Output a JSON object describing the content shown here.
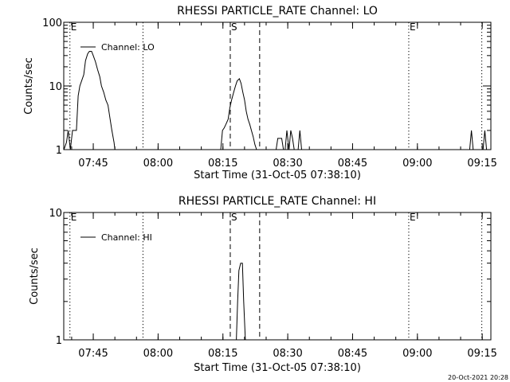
{
  "footer_timestamp": "20-Oct-2021 20:28",
  "chart_data": [
    {
      "type": "line",
      "title": "RHESSI PARTICLE_RATE Channel: LO",
      "xlabel": "Start Time (31-Oct-05 07:38:10)",
      "ylabel": "Counts/sec",
      "yscale": "log",
      "ylim": [
        1,
        100
      ],
      "xlim_minutes": [
        458.17,
        557.0
      ],
      "y_ticks": [
        {
          "value": 1,
          "label": "1"
        },
        {
          "value": 10,
          "label": "10"
        },
        {
          "value": 100,
          "label": "100"
        }
      ],
      "x_ticks": [
        {
          "value": 465,
          "label": "07:45"
        },
        {
          "value": 480,
          "label": "08:00"
        },
        {
          "value": 495,
          "label": "08:15"
        },
        {
          "value": 510,
          "label": "08:30"
        },
        {
          "value": 525,
          "label": "08:45"
        },
        {
          "value": 540,
          "label": "09:00"
        },
        {
          "value": 555,
          "label": "09:15"
        }
      ],
      "legend": {
        "label": "Channel: LO",
        "placement": "top-left"
      },
      "markers": [
        {
          "x": 459.6,
          "style": "dotted",
          "label": "E"
        },
        {
          "x": 476.5,
          "style": "dotted",
          "label": ""
        },
        {
          "x": 496.7,
          "style": "dashed",
          "label": "S"
        },
        {
          "x": 503.5,
          "style": "dashed",
          "label": ""
        },
        {
          "x": 538.0,
          "style": "dotted",
          "label": "E"
        },
        {
          "x": 554.9,
          "style": "dotted",
          "label": ""
        }
      ],
      "series": [
        {
          "name": "Channel: LO",
          "x": [
            458.2,
            458.8,
            459.2,
            459.7,
            460.2,
            460.6,
            461.1,
            461.5,
            461.9,
            462.3,
            462.8,
            463.2,
            463.7,
            464.1,
            464.6,
            465.0,
            465.5,
            466.0,
            466.5,
            466.9,
            467.4,
            467.9,
            468.4,
            468.9,
            469.3,
            469.8,
            470.0,
            470.3,
            494.5,
            494.9,
            495.3,
            495.7,
            496.2,
            496.6,
            497.0,
            497.5,
            497.9,
            498.3,
            498.8,
            499.2,
            499.6,
            500.0,
            500.4,
            500.8,
            501.2,
            501.6,
            502.0,
            502.4,
            502.8,
            503.2,
            503.6,
            507.3,
            507.7,
            508.1,
            508.6,
            509.0,
            509.4,
            509.8,
            510.3,
            510.7,
            511.1,
            511.5,
            512.0,
            512.4,
            512.8,
            513.2,
            513.7,
            552.1,
            552.5,
            552.9,
            555.2,
            555.6,
            556.0
          ],
          "y": [
            1,
            1.3,
            2,
            1,
            2,
            2,
            2,
            7,
            10,
            12,
            15,
            25,
            32,
            35,
            35,
            30,
            24,
            18,
            14,
            10,
            8,
            6,
            5,
            3,
            2,
            1.3,
            1,
            1,
            1,
            2,
            2.2,
            2.5,
            3,
            4.5,
            6,
            8,
            10,
            12,
            13,
            11,
            8,
            6,
            4,
            3,
            2.5,
            2,
            1.6,
            1.2,
            1,
            1,
            1,
            1,
            1.5,
            1.5,
            1.5,
            1,
            1,
            2,
            1,
            2,
            1.5,
            1,
            1,
            1,
            2,
            1,
            1,
            1,
            2,
            1,
            1,
            2,
            1
          ]
        }
      ]
    },
    {
      "type": "line",
      "title": "RHESSI PARTICLE_RATE Channel: HI",
      "xlabel": "Start Time (31-Oct-05 07:38:10)",
      "ylabel": "Counts/sec",
      "yscale": "log",
      "ylim": [
        1,
        10
      ],
      "xlim_minutes": [
        458.17,
        557.0
      ],
      "y_ticks": [
        {
          "value": 1,
          "label": "1"
        },
        {
          "value": 10,
          "label": "10"
        }
      ],
      "x_ticks": [
        {
          "value": 465,
          "label": "07:45"
        },
        {
          "value": 480,
          "label": "08:00"
        },
        {
          "value": 495,
          "label": "08:15"
        },
        {
          "value": 510,
          "label": "08:30"
        },
        {
          "value": 525,
          "label": "08:45"
        },
        {
          "value": 540,
          "label": "09:00"
        },
        {
          "value": 555,
          "label": "09:15"
        }
      ],
      "legend": {
        "label": "Channel: HI",
        "placement": "top-left"
      },
      "markers": [
        {
          "x": 459.6,
          "style": "dotted",
          "label": "E"
        },
        {
          "x": 476.5,
          "style": "dotted",
          "label": ""
        },
        {
          "x": 496.7,
          "style": "dashed",
          "label": "S"
        },
        {
          "x": 503.5,
          "style": "dashed",
          "label": ""
        },
        {
          "x": 538.0,
          "style": "dotted",
          "label": "E"
        },
        {
          "x": 554.9,
          "style": "dotted",
          "label": ""
        }
      ],
      "series": [
        {
          "name": "Channel: HI",
          "x": [
            497.3,
            498.1,
            498.4,
            498.7,
            499.1,
            499.5,
            499.8,
            500.2
          ],
          "y": [
            1,
            1,
            2,
            3.5,
            4,
            4,
            2,
            1
          ]
        }
      ]
    }
  ]
}
